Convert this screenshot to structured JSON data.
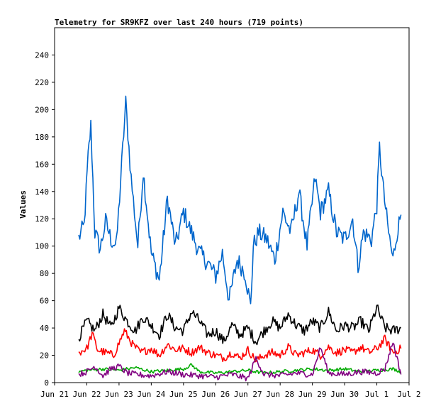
{
  "chart_data": {
    "type": "line",
    "title": "Telemetry for SR9KFZ over last 240 hours (719 points)",
    "xlabel": "",
    "ylabel": "Values",
    "x_axis_type": "date",
    "x_ticks": [
      "Jun 21",
      "Jun 22",
      "Jun 23",
      "Jun 24",
      "Jun 25",
      "Jun 26",
      "Jun 27",
      "Jun 28",
      "Jun 29",
      "Jun 30",
      "Jul 1",
      "Jul 2"
    ],
    "xlim": [
      "Jun 21 00:00",
      "Jul 2 00:00"
    ],
    "data_start": "Jun 21 18:00",
    "data_end": "Jul 1 18:00",
    "ylim": [
      0,
      260
    ],
    "y_ticks": [
      0,
      20,
      40,
      60,
      80,
      100,
      120,
      140,
      160,
      180,
      200,
      220,
      240
    ],
    "grid": false,
    "legend": "none",
    "series": [
      {
        "color": "#0066cc",
        "x": [
          "Jun 21 18:00",
          "Jun 21 22:00",
          "Jun 22 01:00",
          "Jun 22 03:00",
          "Jun 22 06:00",
          "Jun 22 10:00",
          "Jun 22 14:00",
          "Jun 22 18:00",
          "Jun 22 22:00",
          "Jun 23 02:00",
          "Jun 23 05:00",
          "Jun 23 09:00",
          "Jun 23 14:00",
          "Jun 23 18:00",
          "Jun 24 00:00",
          "Jun 24 06:00",
          "Jun 24 12:00",
          "Jun 24 18:00",
          "Jun 25 00:00",
          "Jun 25 06:00",
          "Jun 25 12:00",
          "Jun 25 18:00",
          "Jun 26 00:00",
          "Jun 26 05:00",
          "Jun 26 10:00",
          "Jun 26 16:00",
          "Jun 26 22:00",
          "Jun 27 02:00",
          "Jun 27 04:00",
          "Jun 27 08:00",
          "Jun 27 14:00",
          "Jun 27 20:00",
          "Jun 28 02:00",
          "Jun 28 08:00",
          "Jun 28 14:00",
          "Jun 28 20:00",
          "Jun 29 02:00",
          "Jun 29 06:00",
          "Jun 29 12:00",
          "Jun 29 18:00",
          "Jun 30 00:00",
          "Jun 30 06:00",
          "Jun 30 10:00",
          "Jun 30 14:00",
          "Jun 30 20:00",
          "Jul 1 00:00",
          "Jul 1 02:00",
          "Jul 1 05:00",
          "Jul 1 08:00",
          "Jul 1 12:00",
          "Jul 1 15:00",
          "Jul 1 18:00"
        ],
        "y": [
          106,
          115,
          165,
          188,
          110,
          98,
          118,
          105,
          100,
          160,
          205,
          150,
          100,
          155,
          95,
          75,
          135,
          100,
          125,
          110,
          95,
          88,
          78,
          95,
          60,
          90,
          80,
          55,
          100,
          110,
          105,
          90,
          125,
          110,
          140,
          100,
          150,
          125,
          140,
          110,
          105,
          120,
          85,
          110,
          105,
          130,
          172,
          140,
          115,
          90,
          110,
          123
        ]
      },
      {
        "color": "#000000",
        "x": [
          "Jun 21 18:00",
          "Jun 22 00:00",
          "Jun 22 06:00",
          "Jun 22 12:00",
          "Jun 22 18:00",
          "Jun 23 00:00",
          "Jun 23 06:00",
          "Jun 23 12:00",
          "Jun 23 18:00",
          "Jun 24 00:00",
          "Jun 24 06:00",
          "Jun 24 12:00",
          "Jun 24 18:00",
          "Jun 25 00:00",
          "Jun 25 06:00",
          "Jun 25 12:00",
          "Jun 25 18:00",
          "Jun 26 00:00",
          "Jun 26 06:00",
          "Jun 26 12:00",
          "Jun 26 18:00",
          "Jun 27 00:00",
          "Jun 27 06:00",
          "Jun 27 12:00",
          "Jun 27 18:00",
          "Jun 28 00:00",
          "Jun 28 06:00",
          "Jun 28 12:00",
          "Jun 28 18:00",
          "Jun 29 00:00",
          "Jun 29 06:00",
          "Jun 29 12:00",
          "Jun 29 18:00",
          "Jun 30 00:00",
          "Jun 30 06:00",
          "Jun 30 12:00",
          "Jun 30 18:00",
          "Jul 1 00:00",
          "Jul 1 06:00",
          "Jul 1 12:00",
          "Jul 1 18:00"
        ],
        "y": [
          33,
          45,
          38,
          50,
          40,
          55,
          45,
          38,
          48,
          42,
          35,
          50,
          40,
          38,
          52,
          45,
          35,
          38,
          30,
          42,
          35,
          40,
          30,
          38,
          45,
          40,
          50,
          42,
          38,
          45,
          40,
          52,
          38,
          42,
          40,
          45,
          38,
          55,
          40,
          38,
          40
        ]
      },
      {
        "color": "#ff0000",
        "x": [
          "Jun 21 18:00",
          "Jun 22 00:00",
          "Jun 22 04:00",
          "Jun 22 08:00",
          "Jun 22 14:00",
          "Jun 22 20:00",
          "Jun 23 04:00",
          "Jun 23 10:00",
          "Jun 23 16:00",
          "Jun 24 00:00",
          "Jun 24 06:00",
          "Jun 24 12:00",
          "Jun 24 18:00",
          "Jun 25 00:00",
          "Jun 25 06:00",
          "Jun 25 12:00",
          "Jun 25 18:00",
          "Jun 26 00:00",
          "Jun 26 06:00",
          "Jun 26 12:00",
          "Jun 26 18:00",
          "Jun 27 00:00",
          "Jun 27 06:00",
          "Jun 27 12:00",
          "Jun 27 18:00",
          "Jun 28 00:00",
          "Jun 28 06:00",
          "Jun 28 12:00",
          "Jun 28 18:00",
          "Jun 29 00:00",
          "Jun 29 06:00",
          "Jun 29 12:00",
          "Jun 29 18:00",
          "Jun 30 00:00",
          "Jun 30 06:00",
          "Jun 30 12:00",
          "Jun 30 18:00",
          "Jul 1 00:00",
          "Jul 1 06:00",
          "Jul 1 12:00",
          "Jul 1 18:00"
        ],
        "y": [
          22,
          25,
          36,
          24,
          22,
          20,
          38,
          28,
          22,
          25,
          20,
          28,
          24,
          25,
          22,
          26,
          22,
          20,
          18,
          22,
          18,
          24,
          16,
          20,
          22,
          20,
          26,
          20,
          22,
          24,
          20,
          26,
          22,
          24,
          22,
          26,
          22,
          25,
          32,
          22,
          25
        ]
      },
      {
        "color": "#00aa00",
        "x": [
          "Jun 21 18:00",
          "Jun 22 00:00",
          "Jun 22 12:00",
          "Jun 23 00:00",
          "Jun 23 12:00",
          "Jun 24 00:00",
          "Jun 24 12:00",
          "Jun 25 00:00",
          "Jun 25 06:00",
          "Jun 25 12:00",
          "Jun 26 00:00",
          "Jun 26 12:00",
          "Jun 27 00:00",
          "Jun 27 12:00",
          "Jun 28 00:00",
          "Jun 28 12:00",
          "Jun 29 00:00",
          "Jun 29 12:00",
          "Jun 30 00:00",
          "Jun 30 12:00",
          "Jul 1 00:00",
          "Jul 1 12:00",
          "Jul 1 18:00"
        ],
        "y": [
          8,
          9,
          10,
          9,
          11,
          8,
          9,
          10,
          13,
          8,
          7,
          8,
          9,
          7,
          8,
          9,
          10,
          9,
          10,
          8,
          9,
          10,
          8
        ]
      },
      {
        "color": "#800080",
        "x": [
          "Jun 21 18:00",
          "Jun 22 00:00",
          "Jun 22 06:00",
          "Jun 22 12:00",
          "Jun 22 18:00",
          "Jun 23 00:00",
          "Jun 23 06:00",
          "Jun 23 12:00",
          "Jun 24 00:00",
          "Jun 24 12:00",
          "Jun 25 00:00",
          "Jun 25 12:00",
          "Jun 26 00:00",
          "Jun 26 12:00",
          "Jun 27 00:00",
          "Jun 27 06:00",
          "Jun 27 12:00",
          "Jun 28 00:00",
          "Jun 28 12:00",
          "Jun 29 00:00",
          "Jun 29 06:00",
          "Jun 29 12:00",
          "Jun 30 00:00",
          "Jun 30 12:00",
          "Jul 1 00:00",
          "Jul 1 06:00",
          "Jul 1 12:00",
          "Jul 1 18:00"
        ],
        "y": [
          6,
          8,
          12,
          5,
          10,
          12,
          7,
          6,
          5,
          8,
          6,
          5,
          4,
          6,
          3,
          18,
          6,
          5,
          7,
          6,
          26,
          7,
          6,
          8,
          7,
          10,
          30,
          6
        ]
      }
    ]
  }
}
